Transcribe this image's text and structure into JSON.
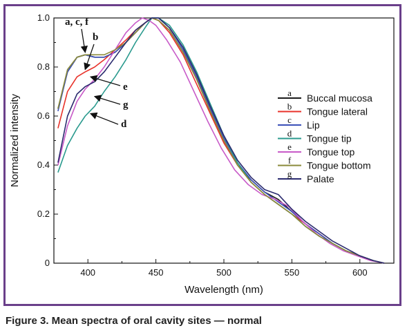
{
  "caption": "Figure 3. Mean spectra of oral cavity sites — normal",
  "colors": {
    "frame": "#6a3f8a"
  },
  "chart_data": {
    "type": "line",
    "xlabel": "Wavelength (nm)",
    "ylabel": "Normalized intensity",
    "xlim": [
      375,
      625
    ],
    "ylim": [
      0,
      1.0
    ],
    "x_ticks": [
      400,
      450,
      500,
      550,
      600
    ],
    "y_ticks": [
      0,
      0.2,
      0.4,
      0.6,
      0.8,
      1.0
    ],
    "x_tick_labels": [
      "400",
      "450",
      "500",
      "550",
      "600"
    ],
    "y_tick_labels": [
      "0",
      "0.2",
      "0.4",
      "0.6",
      "0.8",
      "1.0"
    ],
    "grid": false,
    "legend_position": "right",
    "series": [
      {
        "letter": "a",
        "name": "Buccal mucosa",
        "color": "#1a1a1a",
        "x": [
          378,
          385,
          392,
          398,
          405,
          412,
          420,
          428,
          435,
          442,
          447,
          452,
          460,
          470,
          480,
          490,
          500,
          510,
          520,
          530,
          540,
          550,
          560,
          570,
          580,
          590,
          600,
          610,
          618
        ],
        "y": [
          0.63,
          0.78,
          0.84,
          0.85,
          0.84,
          0.84,
          0.86,
          0.9,
          0.94,
          0.98,
          1.0,
          0.99,
          0.95,
          0.86,
          0.75,
          0.62,
          0.5,
          0.4,
          0.34,
          0.29,
          0.26,
          0.21,
          0.16,
          0.12,
          0.08,
          0.05,
          0.03,
          0.01,
          0.0
        ]
      },
      {
        "letter": "b",
        "name": "Tongue lateral",
        "color": "#e8322a",
        "x": [
          378,
          385,
          392,
          398,
          405,
          412,
          420,
          428,
          435,
          442,
          447,
          452,
          460,
          470,
          480,
          490,
          500,
          510,
          520,
          530,
          540,
          550,
          560,
          570,
          580,
          590,
          600,
          610,
          618
        ],
        "y": [
          0.55,
          0.7,
          0.76,
          0.78,
          0.8,
          0.83,
          0.87,
          0.91,
          0.95,
          0.98,
          1.0,
          0.99,
          0.94,
          0.85,
          0.73,
          0.61,
          0.49,
          0.4,
          0.33,
          0.28,
          0.24,
          0.2,
          0.16,
          0.12,
          0.08,
          0.05,
          0.03,
          0.01,
          0.0
        ]
      },
      {
        "letter": "c",
        "name": "Lip",
        "color": "#3b4fb8",
        "x": [
          378,
          385,
          392,
          398,
          405,
          412,
          420,
          428,
          435,
          442,
          447,
          452,
          460,
          470,
          480,
          490,
          500,
          510,
          520,
          530,
          540,
          550,
          560,
          570,
          580,
          590,
          600,
          610,
          618
        ],
        "y": [
          0.62,
          0.78,
          0.84,
          0.85,
          0.84,
          0.84,
          0.86,
          0.9,
          0.94,
          0.98,
          1.0,
          1.0,
          0.96,
          0.87,
          0.76,
          0.63,
          0.51,
          0.41,
          0.34,
          0.29,
          0.25,
          0.21,
          0.16,
          0.12,
          0.08,
          0.05,
          0.03,
          0.01,
          0.0
        ]
      },
      {
        "letter": "d",
        "name": "Tongue tip",
        "color": "#2a9a8e",
        "x": [
          378,
          385,
          392,
          398,
          405,
          412,
          420,
          428,
          435,
          442,
          447,
          452,
          460,
          470,
          480,
          490,
          500,
          510,
          520,
          530,
          540,
          550,
          560,
          570,
          580,
          590,
          600,
          610,
          618
        ],
        "y": [
          0.37,
          0.48,
          0.55,
          0.6,
          0.64,
          0.7,
          0.76,
          0.83,
          0.9,
          0.96,
          1.0,
          1.0,
          0.97,
          0.89,
          0.78,
          0.65,
          0.52,
          0.41,
          0.33,
          0.28,
          0.24,
          0.2,
          0.15,
          0.11,
          0.08,
          0.05,
          0.03,
          0.01,
          0.0
        ]
      },
      {
        "letter": "e",
        "name": "Tongue top",
        "color": "#c85ac8",
        "x": [
          378,
          385,
          392,
          398,
          405,
          412,
          420,
          428,
          435,
          440,
          445,
          450,
          458,
          468,
          478,
          488,
          498,
          508,
          518,
          528,
          538,
          548,
          558,
          568,
          578,
          588,
          598,
          608,
          618
        ],
        "y": [
          0.4,
          0.56,
          0.66,
          0.71,
          0.75,
          0.8,
          0.87,
          0.94,
          0.98,
          1.0,
          0.99,
          0.97,
          0.91,
          0.82,
          0.7,
          0.58,
          0.47,
          0.38,
          0.32,
          0.28,
          0.26,
          0.23,
          0.17,
          0.12,
          0.08,
          0.05,
          0.03,
          0.01,
          0.0
        ]
      },
      {
        "letter": "f",
        "name": "Tongue bottom",
        "color": "#8a8a3a",
        "x": [
          378,
          385,
          392,
          398,
          405,
          412,
          420,
          428,
          435,
          442,
          447,
          452,
          460,
          470,
          480,
          490,
          500,
          510,
          520,
          530,
          540,
          550,
          560,
          570,
          580,
          590,
          600,
          610,
          618
        ],
        "y": [
          0.63,
          0.79,
          0.84,
          0.85,
          0.85,
          0.85,
          0.87,
          0.9,
          0.94,
          0.98,
          1.0,
          0.99,
          0.95,
          0.86,
          0.75,
          0.62,
          0.5,
          0.4,
          0.33,
          0.28,
          0.24,
          0.2,
          0.15,
          0.11,
          0.08,
          0.05,
          0.03,
          0.01,
          0.0
        ]
      },
      {
        "letter": "g",
        "name": "Palate",
        "color": "#2a2a6e",
        "x": [
          378,
          385,
          392,
          398,
          405,
          412,
          420,
          428,
          435,
          442,
          447,
          452,
          460,
          470,
          480,
          490,
          500,
          510,
          520,
          530,
          540,
          550,
          560,
          570,
          580,
          590,
          600,
          610,
          618
        ],
        "y": [
          0.41,
          0.6,
          0.69,
          0.72,
          0.74,
          0.78,
          0.84,
          0.9,
          0.95,
          0.98,
          1.0,
          1.0,
          0.96,
          0.88,
          0.77,
          0.64,
          0.52,
          0.42,
          0.35,
          0.3,
          0.28,
          0.22,
          0.17,
          0.13,
          0.09,
          0.06,
          0.03,
          0.01,
          0.0
        ]
      }
    ],
    "annotations": [
      {
        "text": "a, c, f",
        "target_x": 398,
        "target_y": 0.86
      },
      {
        "text": "b",
        "target_x": 398,
        "target_y": 0.79
      },
      {
        "text": "e",
        "target_x": 402,
        "target_y": 0.76
      },
      {
        "text": "g",
        "target_x": 405,
        "target_y": 0.68
      },
      {
        "text": "d",
        "target_x": 402,
        "target_y": 0.61
      }
    ]
  }
}
